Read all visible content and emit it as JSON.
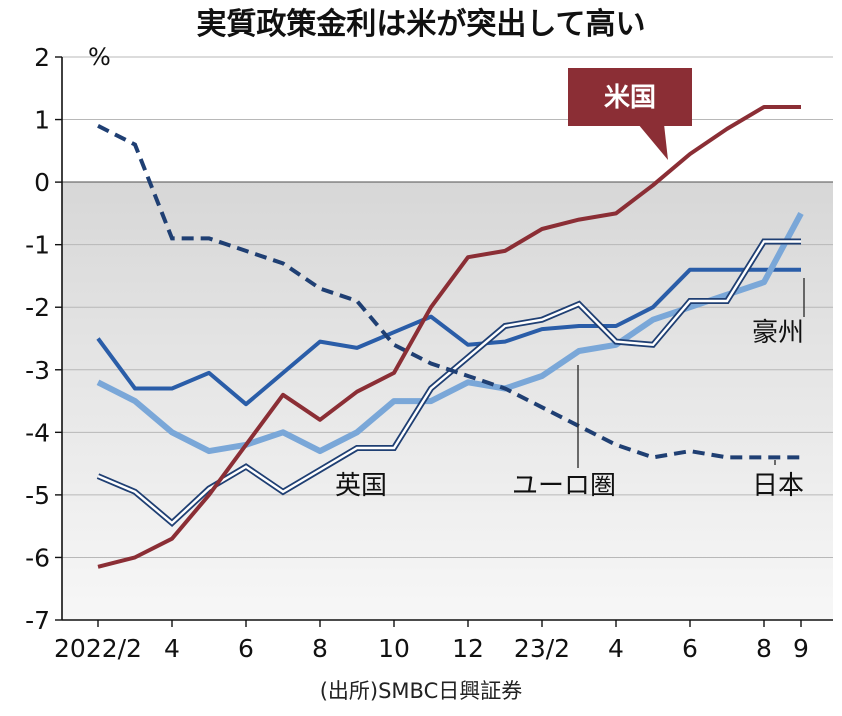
{
  "chart_data": {
    "type": "line",
    "title": "実質政策金利は米が突出して高い",
    "unit": "%",
    "source": "(出所)SMBC日興証券",
    "ylim": [
      -7,
      2
    ],
    "yticks": [
      2,
      1,
      0,
      -1,
      -2,
      -3,
      -4,
      -5,
      -6,
      -7
    ],
    "x": [
      0,
      1,
      2,
      3,
      4,
      5,
      6,
      7,
      8,
      9,
      10,
      11,
      12,
      13,
      14,
      15,
      16,
      17,
      18,
      19
    ],
    "xticks": [
      {
        "x": 0,
        "label": "2022/2"
      },
      {
        "x": 2,
        "label": "4"
      },
      {
        "x": 4,
        "label": "6"
      },
      {
        "x": 6,
        "label": "8"
      },
      {
        "x": 8,
        "label": "10"
      },
      {
        "x": 10,
        "label": "12"
      },
      {
        "x": 12,
        "label": "23/2"
      },
      {
        "x": 14,
        "label": "4"
      },
      {
        "x": 16,
        "label": "6"
      },
      {
        "x": 18,
        "label": "8"
      },
      {
        "x": 19,
        "label": "9"
      }
    ],
    "series": [
      {
        "name": "米国",
        "color": "#8b2e35",
        "style": "solid",
        "values": [
          -6.15,
          -6.0,
          -5.7,
          -5.0,
          -4.2,
          -3.4,
          -3.8,
          -3.35,
          -3.05,
          -2.0,
          -1.2,
          -1.1,
          -0.75,
          -0.6,
          -0.5,
          -0.05,
          0.45,
          0.85,
          1.2,
          1.2
        ]
      },
      {
        "name": "豪州",
        "color": "#2a5da8",
        "style": "solid",
        "values": [
          -2.5,
          -3.3,
          -3.3,
          -3.05,
          -3.55,
          -3.05,
          -2.55,
          -2.65,
          -2.4,
          -2.15,
          -2.6,
          -2.55,
          -2.35,
          -2.3,
          -2.3,
          -2.0,
          -1.4,
          -1.4,
          -1.4,
          -1.4
        ]
      },
      {
        "name": "英国",
        "color": "#7aa7d8",
        "style": "solid",
        "values": [
          -3.2,
          -3.5,
          -4.0,
          -4.3,
          -4.2,
          -4.0,
          -4.3,
          -4.0,
          -3.5,
          -3.5,
          -3.2,
          -3.3,
          -3.1,
          -2.7,
          -2.6,
          -2.2,
          -2.0,
          -1.8,
          -1.6,
          -0.5
        ]
      },
      {
        "name": "ユーロ圏",
        "color": "#1f3f73",
        "style": "double",
        "values": [
          -4.7,
          -4.95,
          -5.45,
          -4.9,
          -4.55,
          -4.95,
          -4.6,
          -4.25,
          -4.25,
          -3.3,
          -2.8,
          -2.3,
          -2.2,
          -1.95,
          -2.55,
          -2.6,
          -1.9,
          -1.9,
          -0.95,
          -0.95
        ]
      },
      {
        "name": "日本",
        "color": "#1f3f73",
        "style": "dashed",
        "values": [
          0.9,
          0.6,
          -0.9,
          -0.9,
          -1.1,
          -1.3,
          -1.7,
          -1.9,
          -2.6,
          -2.9,
          -3.1,
          -3.3,
          -3.6,
          -3.9,
          -4.2,
          -4.4,
          -4.3,
          -4.4,
          -4.4,
          -4.4
        ]
      }
    ],
    "grid": true,
    "shaded_region": "below-zero"
  }
}
